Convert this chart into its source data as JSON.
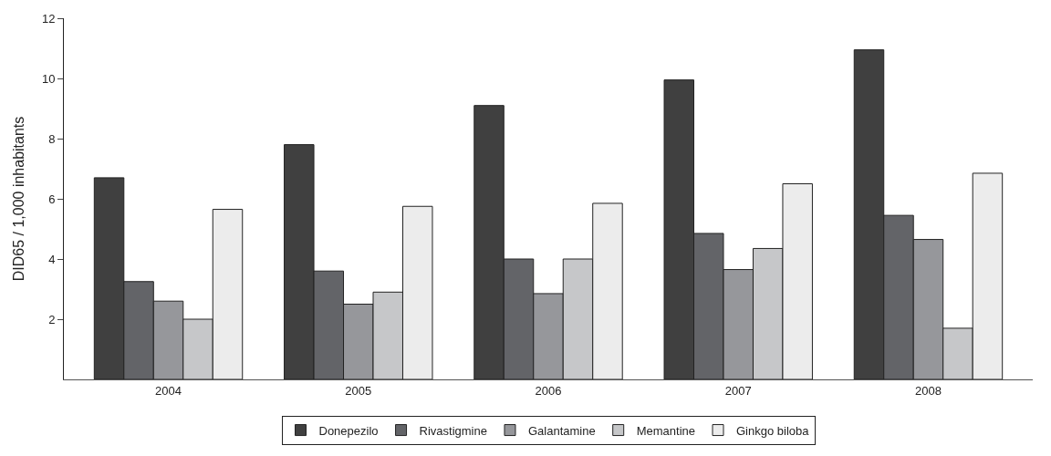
{
  "chart_data": {
    "type": "bar",
    "ylabel": "DID65 / 1,000 inhabitants",
    "categories": [
      "2004",
      "2005",
      "2006",
      "2007",
      "2008"
    ],
    "series": [
      {
        "name": "Donepezilo",
        "color": "#404040",
        "values": [
          6.7,
          7.8,
          9.1,
          9.95,
          10.95
        ]
      },
      {
        "name": "Rivastigmine",
        "color": "#636468",
        "values": [
          3.25,
          3.6,
          4.0,
          4.85,
          5.45
        ]
      },
      {
        "name": "Galantamine",
        "color": "#96979b",
        "values": [
          2.6,
          2.5,
          2.85,
          3.65,
          4.65
        ]
      },
      {
        "name": "Memantine",
        "color": "#c6c7c9",
        "values": [
          2.0,
          2.9,
          4.0,
          4.35,
          1.7
        ]
      },
      {
        "name": "Ginkgo biloba",
        "color": "#ececec",
        "values": [
          5.65,
          5.75,
          5.85,
          6.5,
          6.85
        ]
      }
    ],
    "ylim": [
      0,
      12
    ],
    "yticks": [
      2,
      4,
      6,
      8,
      10,
      12
    ],
    "legend": "bottom"
  }
}
